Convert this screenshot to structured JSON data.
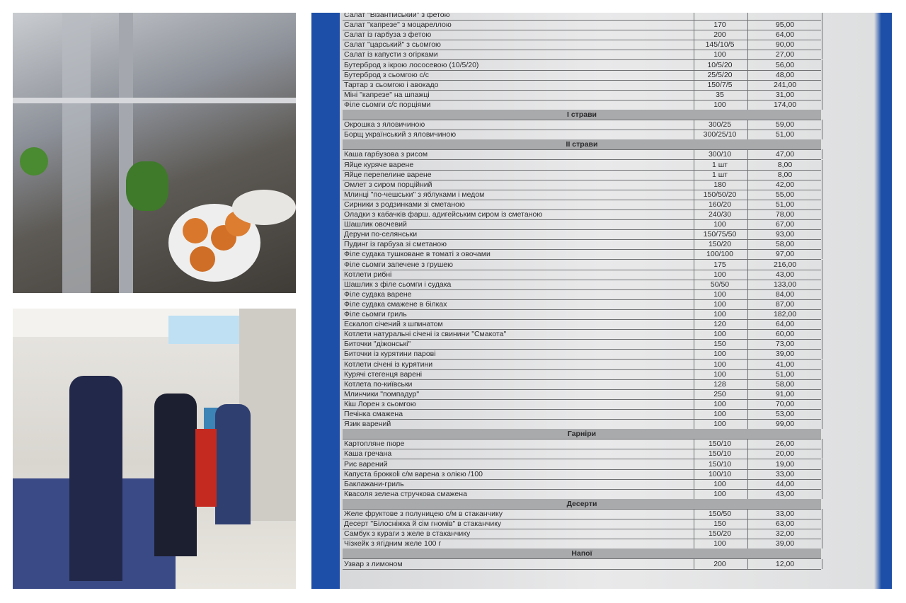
{
  "menu": {
    "rows": [
      {
        "name": "Салат \"Візантійський\" з фетою",
        "weight": "",
        "price": ""
      },
      {
        "name": "Салат \"капрезе\" з моцареллою",
        "weight": "170",
        "price": "95,00"
      },
      {
        "name": "Салат із гарбуза з фетою",
        "weight": "200",
        "price": "64,00"
      },
      {
        "name": "Салат \"царський\" з сьомгою",
        "weight": "145/10/5",
        "price": "90,00"
      },
      {
        "name": "Салат із капусти з огірками",
        "weight": "100",
        "price": "27,00"
      },
      {
        "name": "Бутерброд з ікрою лососевою  (10/5/20)",
        "weight": "10/5/20",
        "price": "56,00"
      },
      {
        "name": "Бутерброд з сьомгою с/с",
        "weight": "25/5/20",
        "price": "48,00"
      },
      {
        "name": "Тартар з сьомгою і авокадо",
        "weight": "150/7/5",
        "price": "241,00"
      },
      {
        "name": "Міні \"капрезе\" на шпажці",
        "weight": "35",
        "price": "31,00"
      },
      {
        "name": "Філе сьомги с/с порціями",
        "weight": "100",
        "price": "174,00"
      },
      {
        "section": "І страви"
      },
      {
        "name": "Окрошка  з яловичиною",
        "weight": "300/25",
        "price": "59,00"
      },
      {
        "name": "Борщ український з яловичиною",
        "weight": "300/25/10",
        "price": "51,00"
      },
      {
        "section": "ІІ страви"
      },
      {
        "name": "Каша гарбузова з рисом",
        "weight": "300/10",
        "price": "47,00"
      },
      {
        "name": "Яйце куряче варене",
        "weight": "1 шт",
        "price": "8,00"
      },
      {
        "name": "Яйце перепелине варене",
        "weight": "1 шт",
        "price": "8,00"
      },
      {
        "name": "Омлет з сиром порційний",
        "weight": "180",
        "price": "42,00"
      },
      {
        "name": "Млинці \"по-чешськи\" з яблуками і медом",
        "weight": "150/50/20",
        "price": "55,00"
      },
      {
        "name": "Сирники з родзинками зі сметаною",
        "weight": "160/20",
        "price": "51,00"
      },
      {
        "name": "Оладки з кабачків фарш. адигейським сиром із сметаною",
        "weight": "240/30",
        "price": "78,00"
      },
      {
        "name": "Шашлик овочевий",
        "weight": "100",
        "price": "67,00"
      },
      {
        "name": "Деруни по-селянськи",
        "weight": "150/75/50",
        "price": "93,00"
      },
      {
        "name": "Пудинг із гарбуза зі сметаною",
        "weight": "150/20",
        "price": "58,00"
      },
      {
        "name": "Філе судака тушковане в томаті з овочами",
        "weight": "100/100",
        "price": "97,00"
      },
      {
        "name": "Філе сьомги запечене з грушею",
        "weight": "175",
        "price": "216,00"
      },
      {
        "name": "Котлети рибні",
        "weight": "100",
        "price": "43,00"
      },
      {
        "name": "Шашлик з філе сьомги і судака",
        "weight": "50/50",
        "price": "133,00"
      },
      {
        "name": "Філе судака варене",
        "weight": "100",
        "price": "84,00"
      },
      {
        "name": "Філе судака смажене в білках",
        "weight": "100",
        "price": "87,00"
      },
      {
        "name": "Філе сьомги гриль",
        "weight": "100",
        "price": "182,00"
      },
      {
        "name": "Ескалоп січений з шпинатом",
        "weight": "120",
        "price": "64,00"
      },
      {
        "name": "Котлети натуральні січені із свинини \"Смакота\"",
        "weight": "100",
        "price": "60,00"
      },
      {
        "name": "Биточки \"діжонські\"",
        "weight": "150",
        "price": "73,00"
      },
      {
        "name": "Биточки із курятини парові",
        "weight": "100",
        "price": "39,00"
      },
      {
        "name": "Котлети січені із курятини",
        "weight": "100",
        "price": "41,00"
      },
      {
        "name": "Курячі стегенця варені",
        "weight": "100",
        "price": "51,00"
      },
      {
        "name": "Котлета по-київськи",
        "weight": "128",
        "price": "58,00"
      },
      {
        "name": "Млинчики \"помпадур\"",
        "weight": "250",
        "price": "91,00"
      },
      {
        "name": "Кіш Лорен з сьомгою",
        "weight": "100",
        "price": "70,00"
      },
      {
        "name": "Печінка смажена",
        "weight": "100",
        "price": "53,00"
      },
      {
        "name": "Язик варений",
        "weight": "100",
        "price": "99,00"
      },
      {
        "section": "Гарніри"
      },
      {
        "name": "Картопляне пюре",
        "weight": "150/10",
        "price": "26,00"
      },
      {
        "name": "Каша гречана",
        "weight": "150/10",
        "price": "20,00"
      },
      {
        "name": "Рис варений",
        "weight": "150/10",
        "price": "19,00"
      },
      {
        "name": "Капуста броккolі с/м варена з олією /100",
        "weight": "100/10",
        "price": "33,00"
      },
      {
        "name": "Баклажани-гриль",
        "weight": "100",
        "price": "44,00"
      },
      {
        "name": "Квасоля зелена стручкова смажена",
        "weight": "100",
        "price": "43,00"
      },
      {
        "section": "Десерти"
      },
      {
        "name": "Желе фруктове з полуницею с/м в стаканчику",
        "weight": "150/50",
        "price": "33,00"
      },
      {
        "name": "Десерт \"Білосніжка й сім гномів\" в стаканчику",
        "weight": "150",
        "price": "63,00"
      },
      {
        "name": "Самбук з кураги з желе в стаканчику",
        "weight": "150/20",
        "price": "32,00"
      },
      {
        "name": "Чізкейк з ягідним желе 100 г",
        "weight": "100",
        "price": "39,00"
      },
      {
        "section": "Напої"
      },
      {
        "name": "Узвар з лимоном",
        "weight": "200",
        "price": "12,00"
      }
    ]
  }
}
